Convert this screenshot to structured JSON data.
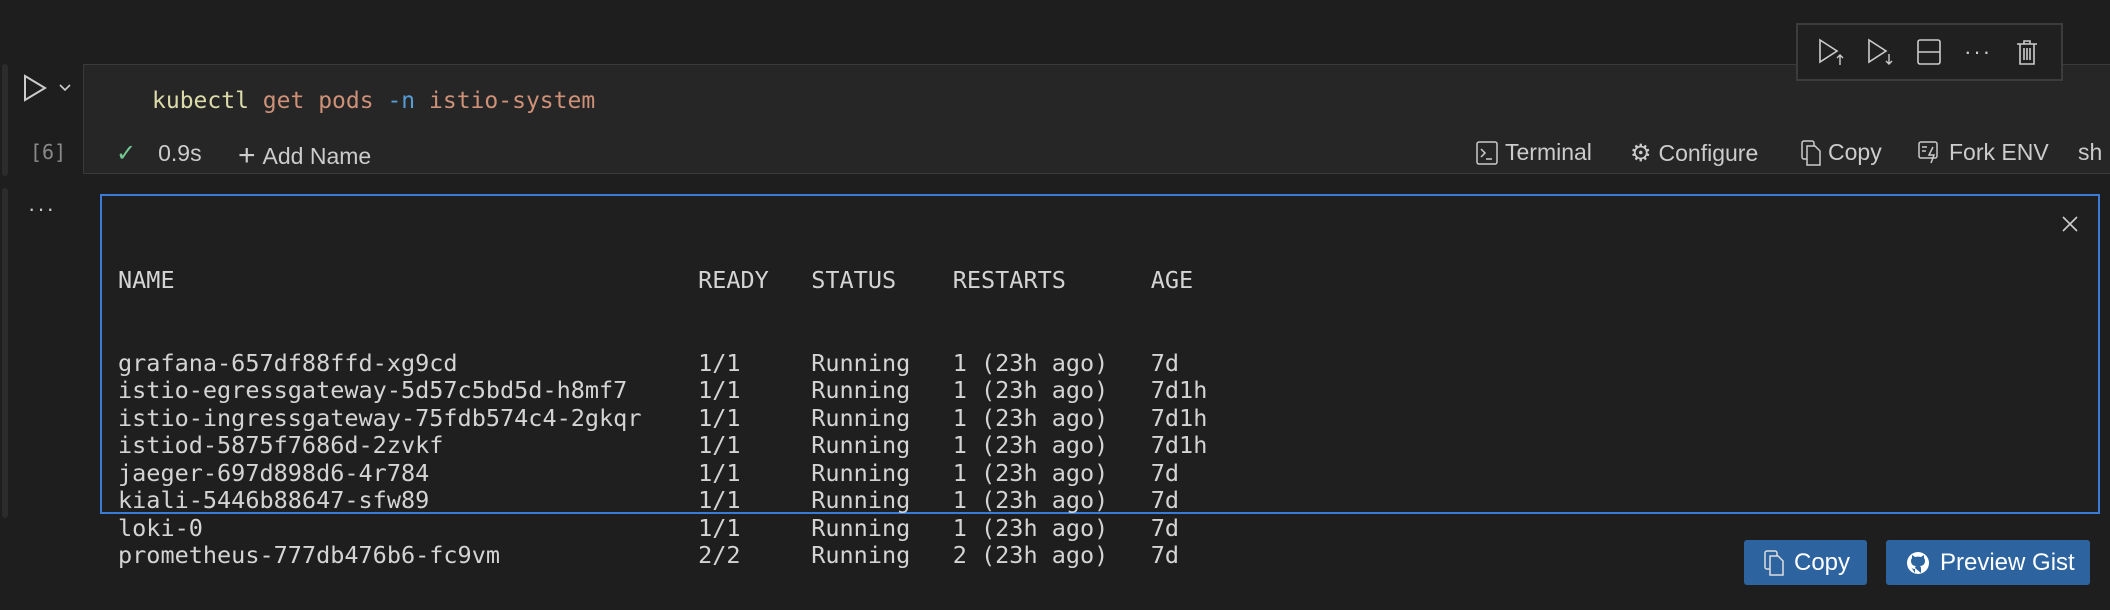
{
  "cell": {
    "execution_count": "[6]",
    "code": {
      "cmd": "kubectl",
      "arg1": "get",
      "arg2": "pods",
      "flag": "-n",
      "value": "istio-system"
    },
    "status": {
      "duration": "0.9s",
      "add_name": "Add Name"
    },
    "actions": {
      "terminal": "Terminal",
      "configure": "Configure",
      "copy": "Copy",
      "fork_env": "Fork ENV",
      "language": "sh"
    },
    "toolbar_icons": [
      "execute-above-icon",
      "execute-below-icon",
      "split-cell-icon",
      "more-icon",
      "delete-icon"
    ]
  },
  "output": {
    "headers": [
      "NAME",
      "READY",
      "STATUS",
      "RESTARTS",
      "AGE"
    ],
    "rows": [
      [
        "grafana-657df88ffd-xg9cd",
        "1/1",
        "Running",
        "1 (23h ago)",
        "7d"
      ],
      [
        "istio-egressgateway-5d57c5bd5d-h8mf7",
        "1/1",
        "Running",
        "1 (23h ago)",
        "7d1h"
      ],
      [
        "istio-ingressgateway-75fdb574c4-2gkqr",
        "1/1",
        "Running",
        "1 (23h ago)",
        "7d1h"
      ],
      [
        "istiod-5875f7686d-2zvkf",
        "1/1",
        "Running",
        "1 (23h ago)",
        "7d1h"
      ],
      [
        "jaeger-697d898d6-4r784",
        "1/1",
        "Running",
        "1 (23h ago)",
        "7d"
      ],
      [
        "kiali-5446b88647-sfw89",
        "1/1",
        "Running",
        "1 (23h ago)",
        "7d"
      ],
      [
        "loki-0",
        "1/1",
        "Running",
        "1 (23h ago)",
        "7d"
      ],
      [
        "prometheus-777db476b6-fc9vm",
        "2/2",
        "Running",
        "2 (23h ago)",
        "7d"
      ]
    ],
    "copy_label": "Copy",
    "gist_label": "Preview Gist"
  },
  "colors": {
    "accent": "#3a7bd5",
    "button": "#2d64a0",
    "success": "#73c991"
  }
}
